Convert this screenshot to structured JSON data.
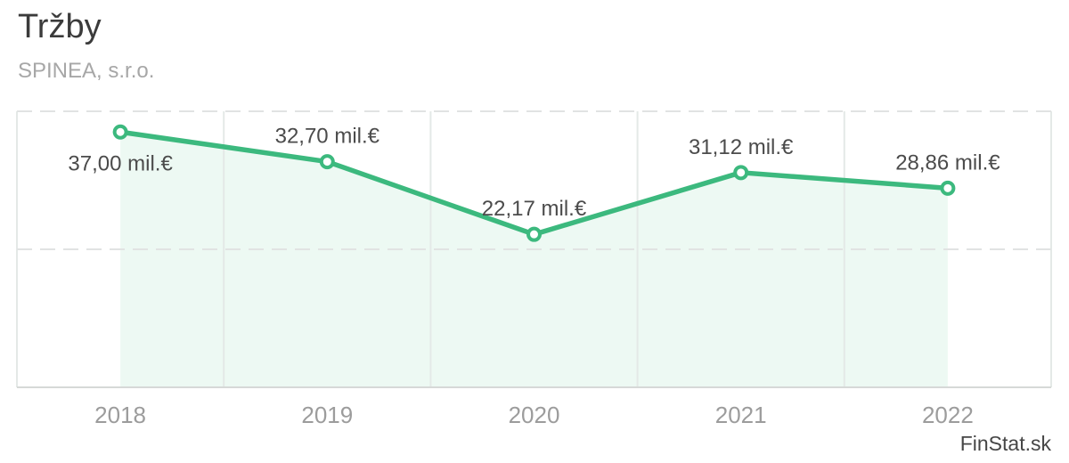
{
  "header": {
    "title": "Tržby",
    "subtitle": "SPINEA, s.r.o."
  },
  "footer": {
    "watermark": "FinStat.sk"
  },
  "chart_data": {
    "type": "line",
    "title": "Tržby",
    "subtitle": "SPINEA, s.r.o.",
    "categories": [
      "2018",
      "2019",
      "2020",
      "2021",
      "2022"
    ],
    "series": [
      {
        "name": "Tržby",
        "values": [
          37.0,
          32.7,
          22.17,
          31.12,
          28.86
        ],
        "labels": [
          "37,00 mil.€",
          "32,70 mil.€",
          "22,17 mil.€",
          "31,12 mil.€",
          "28,86 mil.€"
        ],
        "label_placement": [
          "below",
          "above",
          "above",
          "above",
          "above"
        ]
      }
    ],
    "unit": "mil.€",
    "xlabel": "",
    "ylabel": "",
    "ylim": [
      0,
      40
    ],
    "dashed_gridlines_at_values": [
      20,
      40
    ],
    "axis_at_value": 0,
    "grid": "horizontal dashed lines + vertical column separators, no y tick labels",
    "legend": "none",
    "colors": {
      "line": "#3cb97e",
      "marker_fill": "#ffffff",
      "area_fill": "#3cb97e",
      "area_opacity": 0.09,
      "dashed_grid": "#e1e3e3",
      "vertical_grid": "#e4e9e7",
      "axis_line": "#d6d9d7"
    }
  }
}
